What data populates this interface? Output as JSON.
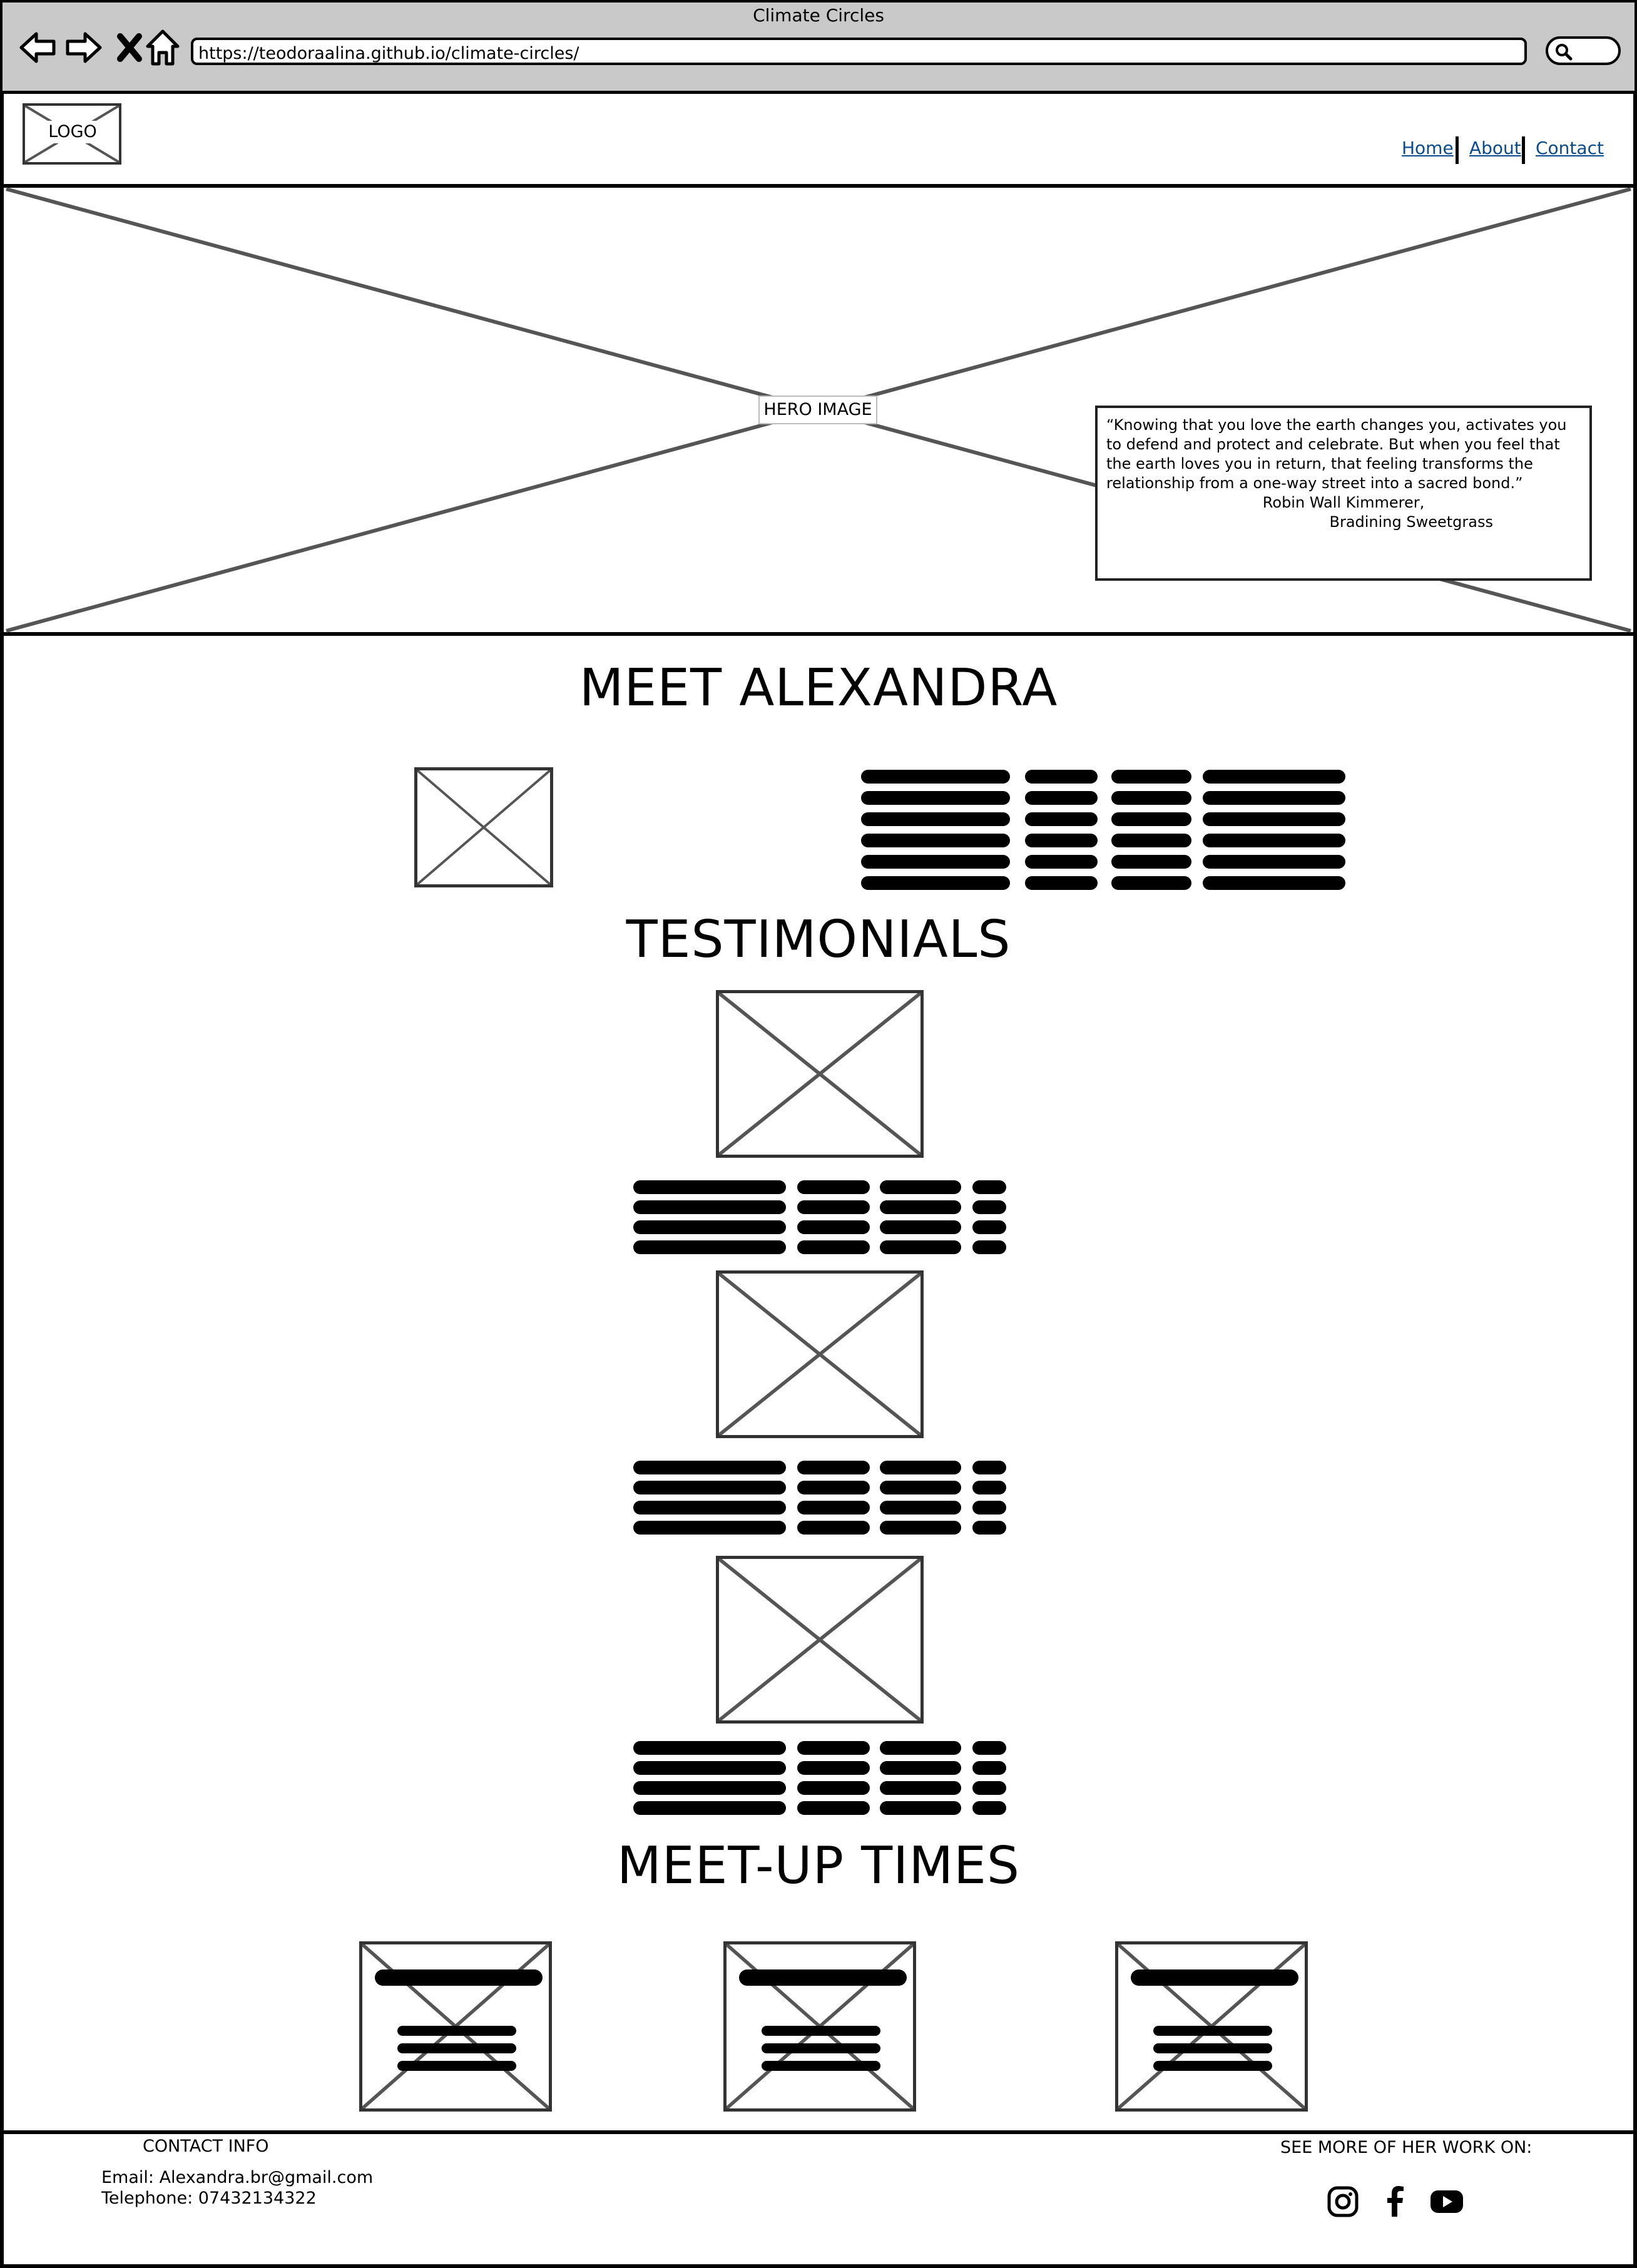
{
  "browser": {
    "window_title": "Climate Circles",
    "url": "https://teodoraalina.github.io/climate-circles/",
    "icons": [
      "back-arrow-icon",
      "forward-arrow-icon",
      "close-icon",
      "home-icon",
      "search-icon"
    ]
  },
  "header": {
    "logo_label": "LOGO",
    "nav": [
      {
        "label": "Home"
      },
      {
        "label": "About"
      },
      {
        "label": "Contact"
      }
    ],
    "link_color": "#0a4b8c"
  },
  "hero": {
    "label": "HERO IMAGE",
    "quote": "“Knowing that you love the earth changes you, activates you to defend and protect and celebrate. But when you feel that the earth loves you in return, that feeling transforms the relationship from a one-way street into a sacred bond.”",
    "author": "Robin Wall Kimmerer,",
    "book": "Bradining Sweetgrass"
  },
  "sections": {
    "about_title": "MEET ALEXANDRA",
    "testimonials_title": "TESTIMONIALS",
    "meetups_title": "MEET-UP TIMES"
  },
  "footer": {
    "contact_title": "CONTACT INFO",
    "email": "Email: Alexandra.br@gmail.com",
    "phone": "Telephone: 07432134322",
    "social_title": "SEE MORE OF HER WORK ON:",
    "social_icons": [
      "instagram-icon",
      "facebook-icon",
      "youtube-icon"
    ]
  }
}
